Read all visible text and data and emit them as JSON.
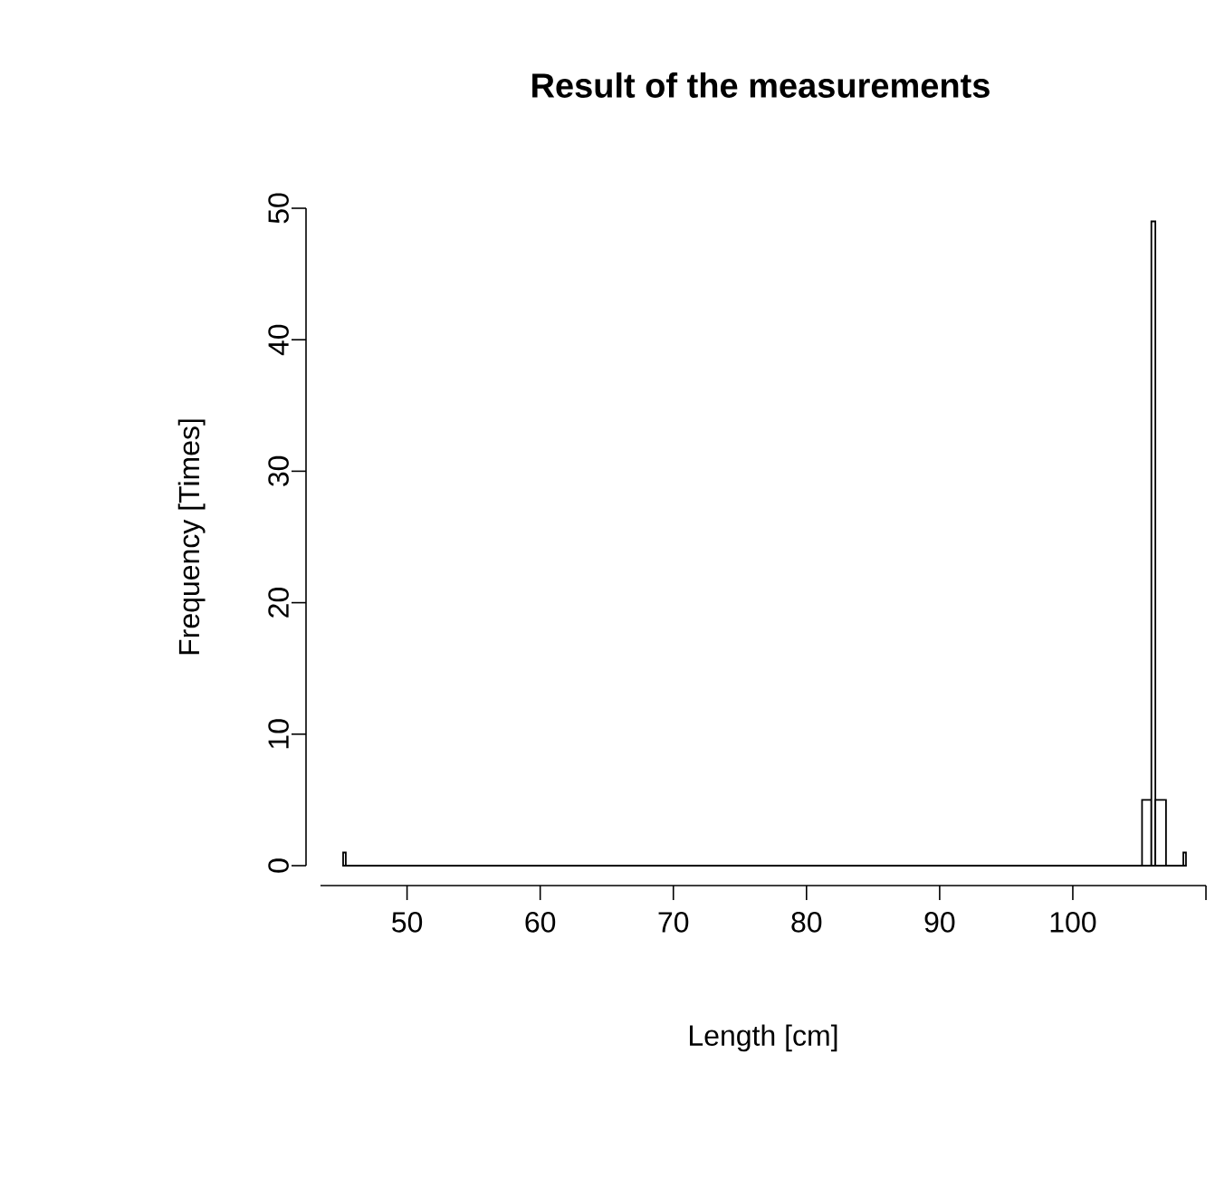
{
  "chart_data": {
    "type": "histogram",
    "title": "Result of the measurements",
    "xlabel": "Length [cm]",
    "ylabel": "Frequency [Times]",
    "bins": [
      45.2,
      45.4,
      105.2,
      105.9,
      106.2,
      107.0,
      108.3,
      108.5
    ],
    "values": [
      1,
      0,
      5,
      49,
      5,
      0,
      1
    ],
    "xlim": [
      43.5,
      110
    ],
    "ylim": [
      0,
      50
    ],
    "xticks": [
      50,
      60,
      70,
      80,
      90,
      100,
      {
        "value": 110,
        "label": null
      }
    ],
    "yticks": [
      0,
      10,
      20,
      30,
      40,
      50
    ]
  }
}
